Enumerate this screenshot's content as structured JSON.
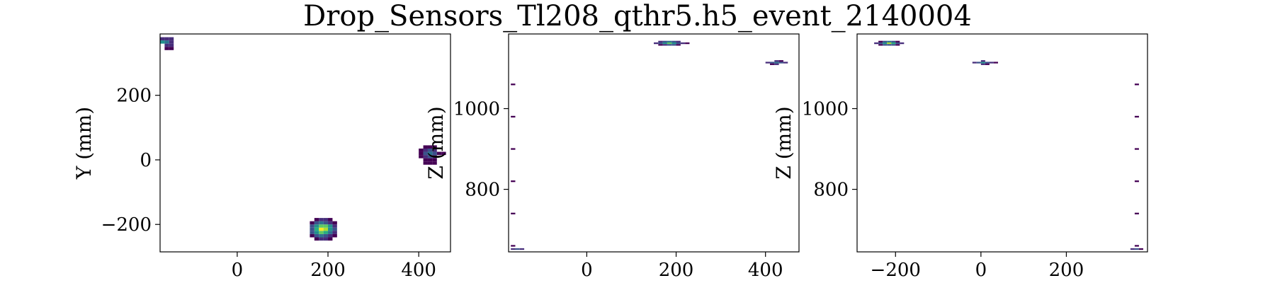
{
  "figure": {
    "title": "Drop_Sensors_Tl208_qthr5.h5_event_2140004"
  },
  "colormap": [
    "#440154",
    "#472d7b",
    "#3b528b",
    "#2c728e",
    "#21918c",
    "#28ae80",
    "#5ec962",
    "#addc30",
    "#fde725"
  ],
  "chart_data": [
    {
      "type": "heatmap",
      "name": "xy",
      "xlabel": "",
      "ylabel": "Y (mm)",
      "xlim": [
        -170,
        470
      ],
      "ylim": [
        -285,
        390
      ],
      "xticks": [
        0,
        200,
        400
      ],
      "yticks": [
        -200,
        0,
        200
      ],
      "xtick_labels": [
        "0",
        "200",
        "400"
      ],
      "ytick_labels": [
        "−200",
        "0",
        "200"
      ],
      "bin_width": 10,
      "bin_height": 10,
      "cells": [
        [
          -165,
          365,
          0.5
        ],
        [
          -155,
          365,
          0.4
        ],
        [
          -165,
          375,
          0.1
        ],
        [
          -155,
          375,
          0.1
        ],
        [
          -145,
          375,
          0.1
        ],
        [
          -145,
          365,
          0.1
        ],
        [
          -145,
          355,
          0.1
        ],
        [
          -155,
          355,
          0.1
        ],
        [
          -145,
          345,
          0.05
        ],
        [
          -155,
          345,
          0.05
        ],
        [
          425,
          20,
          0.4
        ],
        [
          415,
          20,
          0.25
        ],
        [
          435,
          20,
          0.25
        ],
        [
          425,
          10,
          0.3
        ],
        [
          425,
          30,
          0.2
        ],
        [
          415,
          10,
          0.15
        ],
        [
          435,
          10,
          0.15
        ],
        [
          415,
          30,
          0.1
        ],
        [
          435,
          30,
          0.1
        ],
        [
          425,
          0,
          0.05
        ],
        [
          415,
          0,
          0.05
        ],
        [
          435,
          0,
          0.05
        ],
        [
          405,
          20,
          0.05
        ],
        [
          445,
          20,
          0.05
        ],
        [
          405,
          10,
          0.05
        ],
        [
          405,
          30,
          0.05
        ],
        [
          425,
          40,
          0.05
        ],
        [
          415,
          40,
          0.05
        ],
        [
          435,
          40,
          0.05
        ],
        [
          455,
          20,
          0.05
        ],
        [
          425,
          -10,
          0.05
        ],
        [
          415,
          -10,
          0.05
        ],
        [
          435,
          -10,
          0.05
        ],
        [
          185,
          -215,
          1.0
        ],
        [
          195,
          -215,
          0.85
        ],
        [
          185,
          -205,
          0.8
        ],
        [
          195,
          -205,
          0.7
        ],
        [
          185,
          -225,
          0.75
        ],
        [
          195,
          -225,
          0.65
        ],
        [
          175,
          -215,
          0.6
        ],
        [
          205,
          -215,
          0.55
        ],
        [
          175,
          -205,
          0.5
        ],
        [
          205,
          -205,
          0.45
        ],
        [
          175,
          -225,
          0.5
        ],
        [
          205,
          -225,
          0.4
        ],
        [
          185,
          -195,
          0.35
        ],
        [
          195,
          -195,
          0.3
        ],
        [
          185,
          -235,
          0.35
        ],
        [
          195,
          -235,
          0.3
        ],
        [
          165,
          -215,
          0.25
        ],
        [
          215,
          -215,
          0.2
        ],
        [
          165,
          -205,
          0.2
        ],
        [
          215,
          -205,
          0.15
        ],
        [
          165,
          -225,
          0.2
        ],
        [
          215,
          -225,
          0.15
        ],
        [
          175,
          -195,
          0.2
        ],
        [
          205,
          -195,
          0.15
        ],
        [
          175,
          -235,
          0.2
        ],
        [
          205,
          -235,
          0.15
        ],
        [
          185,
          -245,
          0.1
        ],
        [
          195,
          -245,
          0.1
        ],
        [
          185,
          -185,
          0.1
        ],
        [
          195,
          -185,
          0.1
        ],
        [
          175,
          -245,
          0.05
        ],
        [
          205,
          -245,
          0.05
        ],
        [
          175,
          -185,
          0.05
        ],
        [
          205,
          -185,
          0.05
        ],
        [
          165,
          -195,
          0.05
        ],
        [
          215,
          -195,
          0.05
        ],
        [
          165,
          -235,
          0.05
        ],
        [
          215,
          -235,
          0.05
        ]
      ]
    },
    {
      "type": "heatmap",
      "name": "xz",
      "xlabel": "",
      "ylabel": "Z (mm)",
      "xlim": [
        -175,
        475
      ],
      "ylim": [
        645,
        1185
      ],
      "xticks": [
        0,
        200,
        400
      ],
      "yticks": [
        800,
        1000
      ],
      "xtick_labels": [
        "0",
        "200",
        "400"
      ],
      "ytick_labels": [
        "800",
        "1000"
      ],
      "bin_width": 10,
      "bin_height": 4,
      "cells": [
        [
          -165,
          660,
          0.05
        ],
        [
          -165,
          740,
          0.05
        ],
        [
          -165,
          820,
          0.05
        ],
        [
          -165,
          900,
          0.05
        ],
        [
          -165,
          980,
          0.05
        ],
        [
          -165,
          1060,
          0.05
        ],
        [
          -155,
          652,
          0.2
        ],
        [
          -145,
          652,
          0.1
        ],
        [
          -165,
          652,
          0.1
        ],
        [
          185,
          1162,
          0.8
        ],
        [
          175,
          1162,
          0.5
        ],
        [
          195,
          1162,
          0.45
        ],
        [
          165,
          1162,
          0.25
        ],
        [
          205,
          1162,
          0.3
        ],
        [
          185,
          1166,
          0.4
        ],
        [
          175,
          1166,
          0.25
        ],
        [
          195,
          1166,
          0.3
        ],
        [
          185,
          1158,
          0.25
        ],
        [
          175,
          1158,
          0.15
        ],
        [
          195,
          1158,
          0.2
        ],
        [
          155,
          1162,
          0.1
        ],
        [
          215,
          1162,
          0.15
        ],
        [
          165,
          1166,
          0.1
        ],
        [
          205,
          1166,
          0.1
        ],
        [
          165,
          1158,
          0.05
        ],
        [
          205,
          1158,
          0.05
        ],
        [
          225,
          1162,
          0.05
        ],
        [
          425,
          1114,
          0.4
        ],
        [
          415,
          1114,
          0.3
        ],
        [
          435,
          1114,
          0.25
        ],
        [
          405,
          1114,
          0.1
        ],
        [
          445,
          1114,
          0.1
        ],
        [
          425,
          1118,
          0.15
        ],
        [
          425,
          1110,
          0.1
        ],
        [
          415,
          1110,
          0.05
        ],
        [
          435,
          1118,
          0.05
        ]
      ]
    },
    {
      "type": "heatmap",
      "name": "yz",
      "xlabel": "",
      "ylabel": "Z (mm)",
      "xlim": [
        -290,
        390
      ],
      "ylim": [
        645,
        1185
      ],
      "xticks": [
        -200,
        0,
        200
      ],
      "yticks": [
        800,
        1000
      ],
      "xtick_labels": [
        "−200",
        "0",
        "200"
      ],
      "ytick_labels": [
        "800",
        "1000"
      ],
      "bin_width": 10,
      "bin_height": 4,
      "cells": [
        [
          365,
          660,
          0.05
        ],
        [
          365,
          740,
          0.05
        ],
        [
          365,
          820,
          0.05
        ],
        [
          365,
          900,
          0.05
        ],
        [
          365,
          980,
          0.05
        ],
        [
          365,
          1060,
          0.05
        ],
        [
          365,
          652,
          0.2
        ],
        [
          355,
          652,
          0.1
        ],
        [
          375,
          652,
          0.05
        ],
        [
          -215,
          1162,
          0.85
        ],
        [
          -205,
          1162,
          0.6
        ],
        [
          -225,
          1162,
          0.55
        ],
        [
          -195,
          1162,
          0.3
        ],
        [
          -235,
          1162,
          0.3
        ],
        [
          -215,
          1166,
          0.35
        ],
        [
          -205,
          1166,
          0.3
        ],
        [
          -225,
          1166,
          0.25
        ],
        [
          -215,
          1158,
          0.3
        ],
        [
          -205,
          1158,
          0.2
        ],
        [
          -225,
          1158,
          0.2
        ],
        [
          -245,
          1162,
          0.1
        ],
        [
          -185,
          1162,
          0.1
        ],
        [
          -235,
          1166,
          0.05
        ],
        [
          -195,
          1166,
          0.05
        ],
        [
          -235,
          1158,
          0.05
        ],
        [
          -195,
          1158,
          0.05
        ],
        [
          5,
          1114,
          0.45
        ],
        [
          15,
          1114,
          0.3
        ],
        [
          -5,
          1114,
          0.3
        ],
        [
          25,
          1114,
          0.1
        ],
        [
          -15,
          1114,
          0.1
        ],
        [
          5,
          1118,
          0.15
        ],
        [
          5,
          1110,
          0.1
        ],
        [
          15,
          1110,
          0.05
        ],
        [
          35,
          1114,
          0.05
        ]
      ]
    }
  ]
}
